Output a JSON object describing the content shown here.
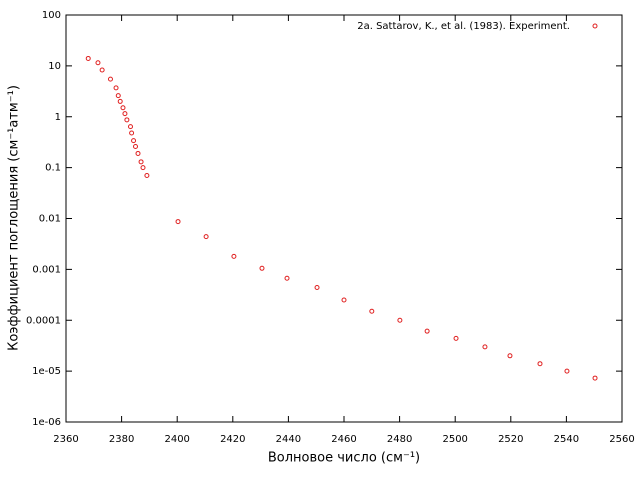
{
  "chart_data": {
    "type": "scatter",
    "xlabel": "Волновое число (см⁻¹)",
    "ylabel": "Коэффициент поглощения (см⁻¹атм⁻¹)",
    "yscale": "log",
    "legend": "top-right",
    "xlim": [
      2360,
      2560
    ],
    "xticks": [
      2360,
      2380,
      2400,
      2420,
      2440,
      2460,
      2480,
      2500,
      2520,
      2540,
      2560
    ],
    "ylim": [
      1e-06,
      100
    ],
    "yticks": [
      100,
      10,
      1,
      0.1,
      0.01,
      0.001,
      0.0001,
      {
        "value": 1e-05,
        "label": "1e-05"
      },
      {
        "value": 1e-06,
        "label": "1e-06"
      }
    ],
    "series": [
      {
        "name": "2a. Sattarov, K., et al. (1983). Experiment.",
        "color": "#e02020",
        "x": [
          2368,
          2371.5,
          2373,
          2376,
          2378,
          2378.8,
          2379.5,
          2380.5,
          2381.2,
          2381.9,
          2383.2,
          2383.6,
          2384.3,
          2385,
          2385.9,
          2387,
          2387.7,
          2389.1,
          2400.3,
          2410.4,
          2420.4,
          2430.5,
          2439.5,
          2450.3,
          2460,
          2470,
          2480.1,
          2489.9,
          2500.3,
          2510.7,
          2519.7,
          2530.5,
          2540.2,
          2550.3
        ],
        "values": [
          14,
          11.5,
          8.3,
          5.5,
          3.7,
          2.6,
          2.0,
          1.5,
          1.15,
          0.87,
          0.64,
          0.48,
          0.34,
          0.26,
          0.19,
          0.13,
          0.1,
          0.07,
          0.0087,
          0.0044,
          0.0018,
          0.00105,
          0.00067,
          0.00044,
          0.00025,
          0.00015,
          0.0001,
          6.1e-05,
          4.4e-05,
          3e-05,
          2e-05,
          1.4e-05,
          1e-05,
          7.3e-06
        ]
      }
    ]
  }
}
